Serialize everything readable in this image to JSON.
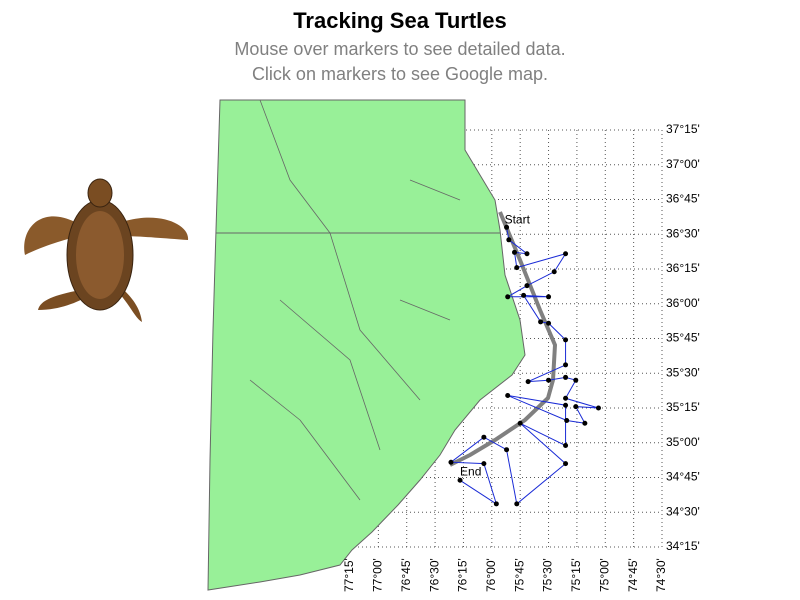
{
  "chart_data": {
    "type": "track-map",
    "title": "Tracking Sea Turtles",
    "subtitle": [
      "Mouse over markers to see detailed data.",
      "Click on markers to see Google map."
    ],
    "annotations": [
      "Start",
      "End"
    ],
    "xlim": [
      -77.25,
      -74.5
    ],
    "ylim": [
      34.25,
      37.25
    ],
    "xticks": [
      {
        "value": -77.25,
        "label": "77°15'"
      },
      {
        "value": -77.0,
        "label": "77°00'"
      },
      {
        "value": -76.75,
        "label": "76°45'"
      },
      {
        "value": -76.5,
        "label": "76°30'"
      },
      {
        "value": -76.25,
        "label": "76°15'"
      },
      {
        "value": -76.0,
        "label": "76°00'"
      },
      {
        "value": -75.75,
        "label": "75°45'"
      },
      {
        "value": -75.5,
        "label": "75°30'"
      },
      {
        "value": -75.25,
        "label": "75°15'"
      },
      {
        "value": -75.0,
        "label": "75°00'"
      },
      {
        "value": -74.75,
        "label": "74°45'"
      },
      {
        "value": -74.5,
        "label": "74°30'"
      }
    ],
    "yticks": [
      {
        "value": 37.25,
        "label": "37°15'"
      },
      {
        "value": 37.0,
        "label": "37°00'"
      },
      {
        "value": 36.75,
        "label": "36°45'"
      },
      {
        "value": 36.5,
        "label": "36°30'"
      },
      {
        "value": 36.25,
        "label": "36°15'"
      },
      {
        "value": 36.0,
        "label": "36°00'"
      },
      {
        "value": 35.75,
        "label": "35°45'"
      },
      {
        "value": 35.5,
        "label": "35°30'"
      },
      {
        "value": 35.25,
        "label": "35°15'"
      },
      {
        "value": 35.0,
        "label": "35°00'"
      },
      {
        "value": 34.75,
        "label": "34°45'"
      },
      {
        "value": 34.5,
        "label": "34°30'"
      },
      {
        "value": 34.25,
        "label": "34°15'"
      }
    ],
    "grid": true,
    "track": {
      "color": "#1a2bd6",
      "marker_color": "#000000",
      "lon": [
        -75.87,
        -75.85,
        -75.69,
        -75.8,
        -75.78,
        -75.35,
        -75.45,
        -75.69,
        -75.86,
        -75.5,
        -75.72,
        -75.57,
        -75.5,
        -75.35,
        -75.35,
        -75.68,
        -75.5,
        -75.35,
        -75.26,
        -75.35,
        -75.06,
        -75.26,
        -75.18,
        -75.34,
        -75.86,
        -75.35,
        -75.35,
        -75.75,
        -75.35,
        -75.78,
        -75.87,
        -76.07,
        -76.36,
        -76.07,
        -75.96,
        -76.28
      ],
      "lat": [
        36.55,
        36.46,
        36.36,
        36.37,
        36.26,
        36.36,
        36.23,
        36.13,
        36.05,
        36.05,
        36.06,
        35.87,
        35.86,
        35.74,
        35.56,
        35.44,
        35.45,
        35.47,
        35.45,
        35.32,
        35.25,
        35.26,
        35.14,
        35.16,
        35.34,
        35.27,
        34.98,
        35.14,
        34.85,
        34.56,
        34.95,
        35.04,
        34.86,
        34.85,
        34.56,
        34.73
      ]
    }
  }
}
